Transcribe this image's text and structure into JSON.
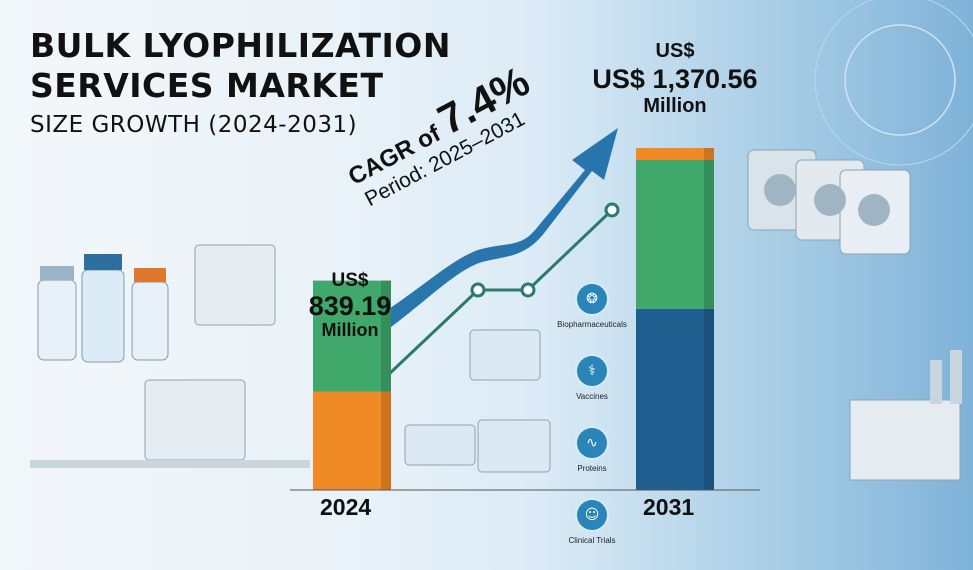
{
  "title": {
    "line1": "BULK LYOPHILIZATION",
    "line2": "SERVICES MARKET",
    "line3": "SIZE GROWTH (2024-2031)"
  },
  "cagr": {
    "label": "CAGR of",
    "value": "7.4%",
    "period": "Period: 2025–2031"
  },
  "value_labels": {
    "y2024": {
      "currency": "US$",
      "amount": "839.19",
      "unit": "Million"
    },
    "y2031": {
      "currency": "US$",
      "amount": "1,370.56",
      "unit": "Million"
    }
  },
  "segments": [
    {
      "label": "Biopharmaceuticals",
      "icon": "dna-icon"
    },
    {
      "label": "Vaccines",
      "icon": "syringe-icon"
    },
    {
      "label": "Proteins",
      "icon": "protein-icon"
    },
    {
      "label": "Clinical Trials",
      "icon": "doctor-icon"
    }
  ],
  "colors": {
    "bar_orange": "#f08a24",
    "bar_green": "#3fa86a",
    "bar_blue": "#1f5f8f",
    "arrow": "#1d6fa8"
  },
  "chart_data": {
    "type": "bar",
    "categories": [
      "2024",
      "2031"
    ],
    "values": [
      839.19,
      1370.56
    ],
    "unit": "US$ Million",
    "ylim": [
      0,
      1400
    ],
    "cagr": "7.4%"
  }
}
